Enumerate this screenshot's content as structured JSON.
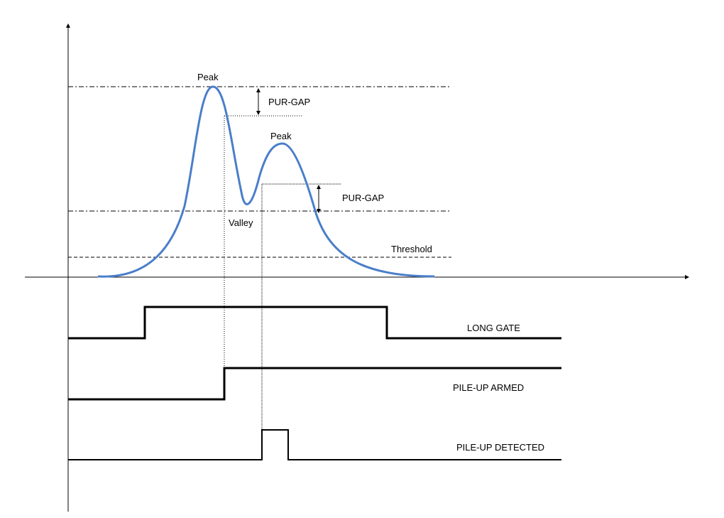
{
  "labels": {
    "peak_1": "Peak",
    "peak_2": "Peak",
    "valley": "Valley",
    "pur_gap_1": "PUR-GAP",
    "pur_gap_2": "PUR-GAP",
    "threshold": "Threshold",
    "long_gate": "LONG GATE",
    "pileup_armed": "PILE-UP ARMED",
    "pileup_detected": "PILE-UP DETECTED"
  },
  "colors": {
    "pulse": "#4a7ec9",
    "lines": "#000000"
  }
}
